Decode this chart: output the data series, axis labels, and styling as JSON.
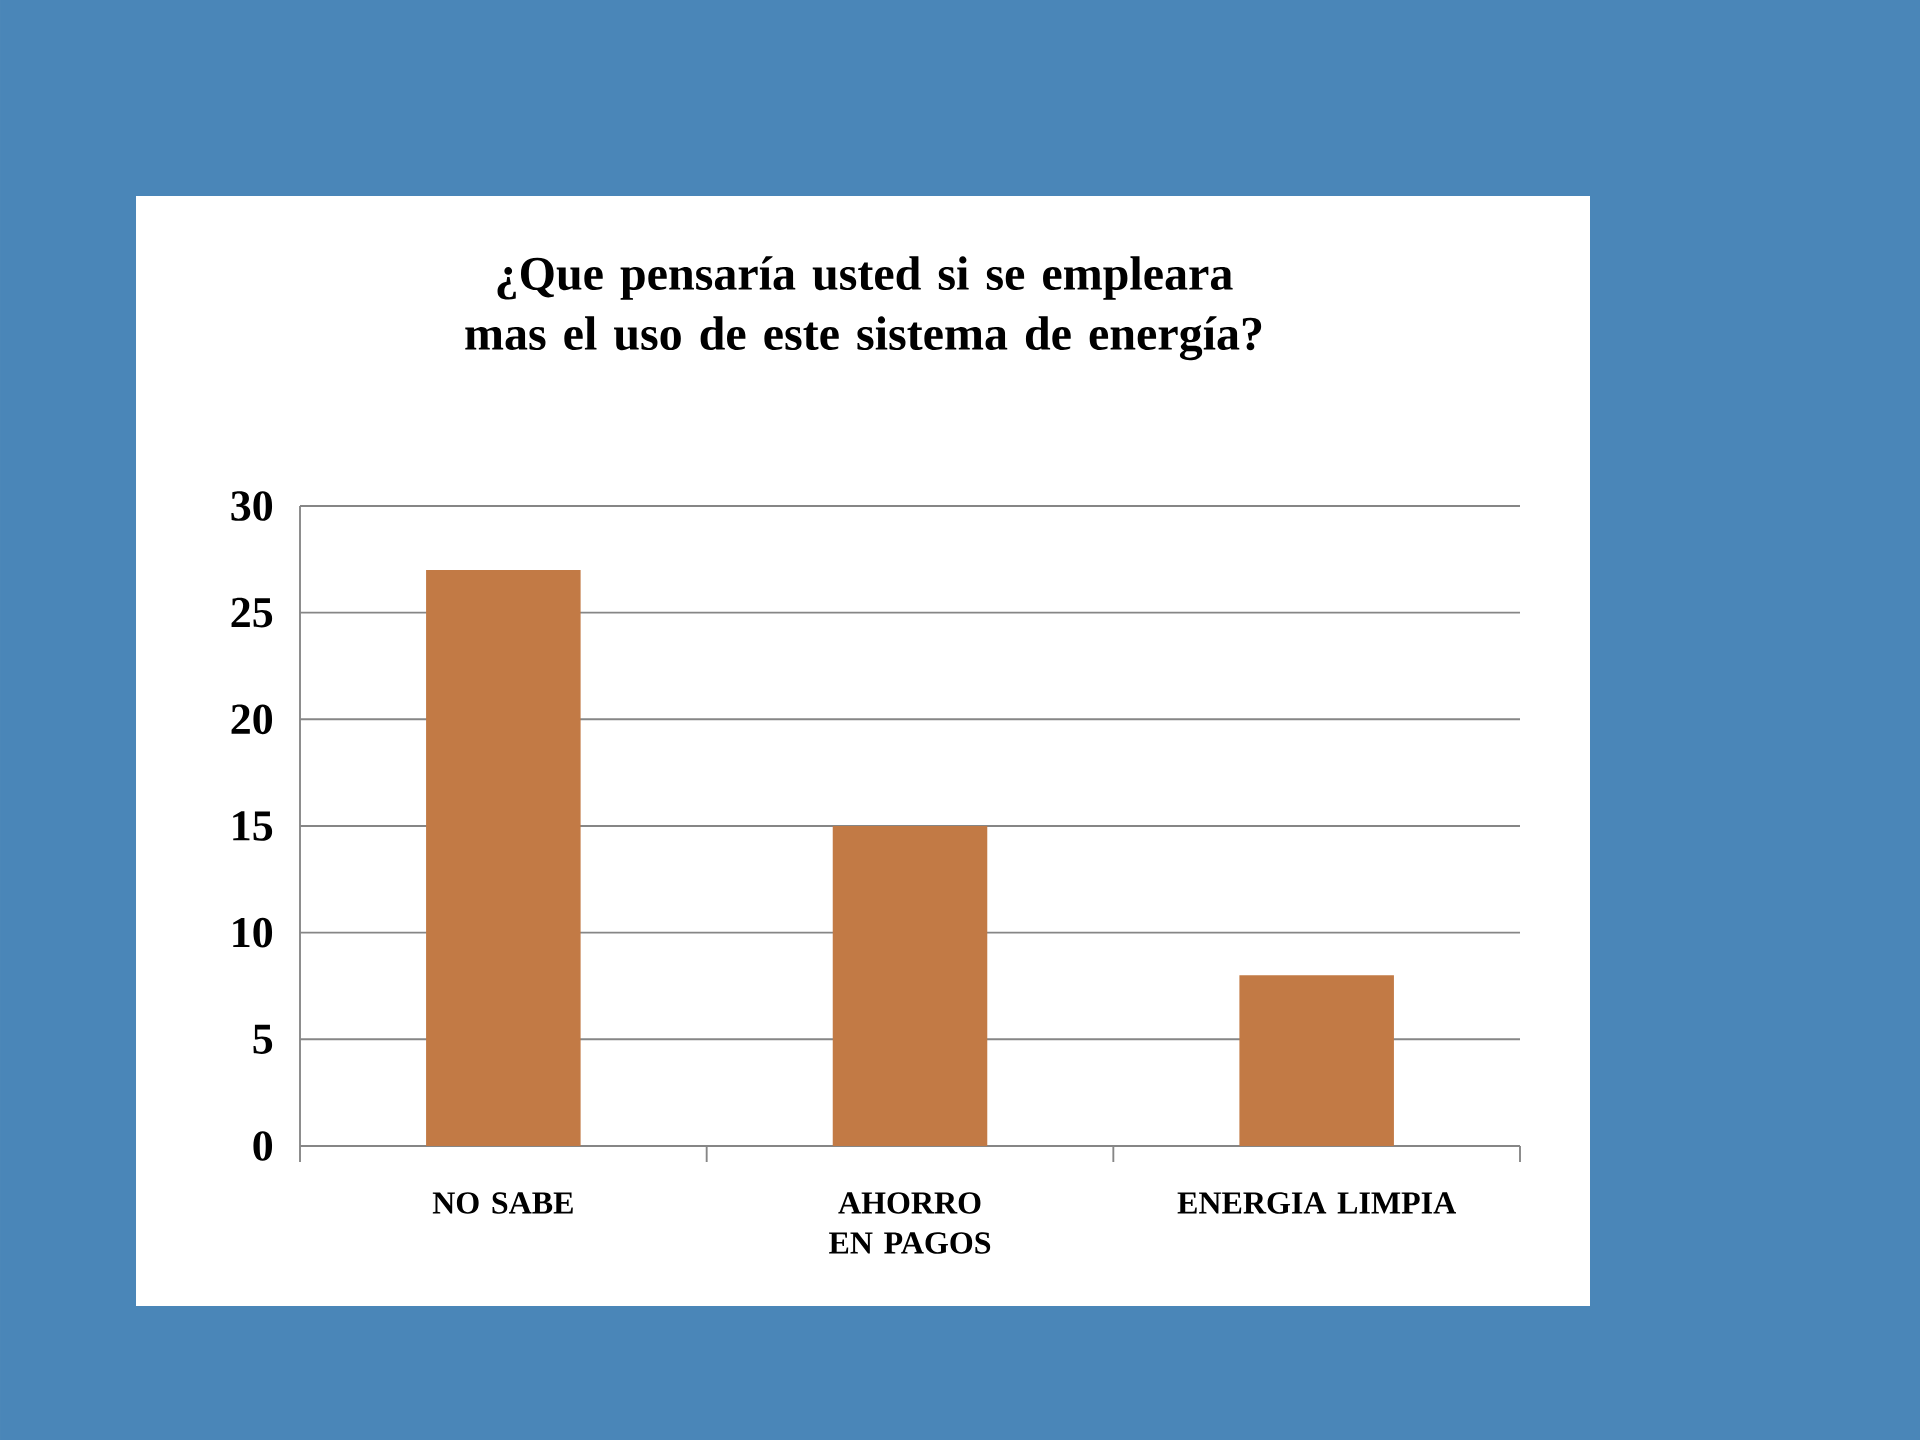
{
  "chart_data": {
    "type": "bar",
    "title": "¿Que pensaría usted si se empleara mas el uso de este sistema de energía?",
    "categories": [
      "NO SABE",
      "AHORRO EN PAGOS",
      "ENERGIA LIMPIA"
    ],
    "values": [
      27,
      15,
      8
    ],
    "color": "#c27a45",
    "ylim": [
      0,
      30
    ],
    "yticks": [
      0,
      5,
      10,
      15,
      20,
      25,
      30
    ],
    "grid": "y"
  }
}
